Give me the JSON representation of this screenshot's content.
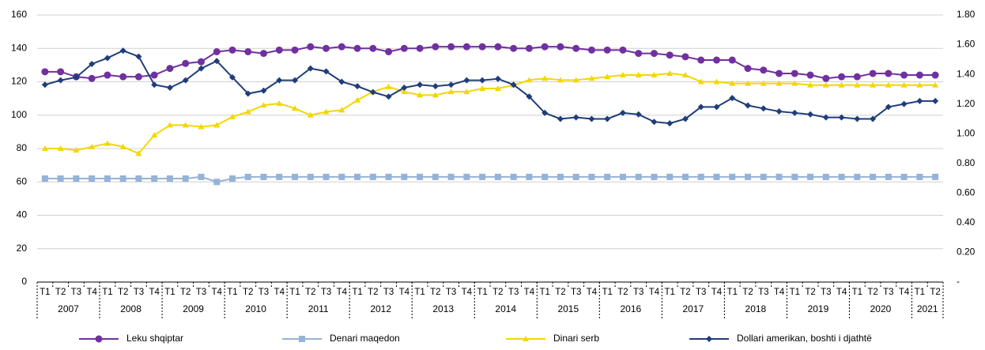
{
  "chart_data": {
    "type": "line",
    "categories": [
      "T1",
      "T2",
      "T3",
      "T4",
      "T1",
      "T2",
      "T3",
      "T4",
      "T1",
      "T2",
      "T3",
      "T4",
      "T1",
      "T2",
      "T3",
      "T4",
      "T1",
      "T2",
      "T3",
      "T4",
      "T1",
      "T2",
      "T3",
      "T4",
      "T1",
      "T2",
      "T3",
      "T4",
      "T1",
      "T2",
      "T3",
      "T4",
      "T1",
      "T2",
      "T3",
      "T4",
      "T1",
      "T2",
      "T3",
      "T4",
      "T1",
      "T2",
      "T3",
      "T4",
      "T1",
      "T2",
      "T3",
      "T4",
      "T1",
      "T2",
      "T3",
      "T4",
      "T1",
      "T2",
      "T3",
      "T4",
      "T1",
      "T2"
    ],
    "years": [
      "2007",
      "2008",
      "2009",
      "2010",
      "2011",
      "2012",
      "2013",
      "2014",
      "2015",
      "2016",
      "2017",
      "2018",
      "2019",
      "2020",
      "2021"
    ],
    "ylim": [
      0,
      160
    ],
    "yticks": [
      0,
      20,
      40,
      60,
      80,
      100,
      120,
      140,
      160
    ],
    "y2lim": [
      0,
      1.8
    ],
    "y2ticks": [
      {
        "value": 0,
        "label": "-"
      },
      {
        "value": 0.2,
        "label": "0.20"
      },
      {
        "value": 0.4,
        "label": "0.40"
      },
      {
        "value": 0.6,
        "label": "0.60"
      },
      {
        "value": 0.8,
        "label": "0.80"
      },
      {
        "value": 1.0,
        "label": "1.00"
      },
      {
        "value": 1.2,
        "label": "1.20"
      },
      {
        "value": 1.4,
        "label": "1.40"
      },
      {
        "value": 1.6,
        "label": "1.60"
      },
      {
        "value": 1.8,
        "label": "1.80"
      }
    ],
    "grid": true,
    "legend": "bottom",
    "series": [
      {
        "name": "Leku shqiptar",
        "color": "#7030a0",
        "marker": "circle",
        "values": [
          126,
          126,
          123,
          122,
          124,
          123,
          123,
          124,
          128,
          131,
          132,
          138,
          139,
          138,
          137,
          139,
          139,
          141,
          140,
          141,
          140,
          140,
          138,
          140,
          140,
          141,
          141,
          141,
          141,
          141,
          140,
          140,
          141,
          141,
          140,
          139,
          139,
          139,
          137,
          137,
          136,
          135,
          133,
          133,
          133,
          128,
          127,
          125,
          125,
          124,
          122,
          123,
          123,
          125,
          125,
          124,
          124,
          124
        ]
      },
      {
        "name": "Denari maqedon",
        "color": "#95b3d7",
        "marker": "square",
        "values": [
          62,
          62,
          62,
          62,
          62,
          62,
          62,
          62,
          62,
          62,
          63,
          60,
          62,
          63,
          63,
          63,
          63,
          63,
          63,
          63,
          63,
          63,
          63,
          63,
          63,
          63,
          63,
          63,
          63,
          63,
          63,
          63,
          63,
          63,
          63,
          63,
          63,
          63,
          63,
          63,
          63,
          63,
          63,
          63,
          63,
          63,
          63,
          63,
          63,
          63,
          63,
          63,
          63,
          63,
          63,
          63,
          63,
          63
        ]
      },
      {
        "name": "Dinari serb",
        "color": "#f2d700",
        "marker": "triangle",
        "values": [
          80,
          80,
          79,
          81,
          83,
          81,
          77,
          88,
          94,
          94,
          93,
          94,
          99,
          102,
          106,
          107,
          104,
          100,
          102,
          103,
          109,
          114,
          117,
          114,
          112,
          112,
          114,
          114,
          116,
          116,
          118,
          121,
          122,
          121,
          121,
          122,
          123,
          124,
          124,
          124,
          125,
          124,
          120,
          120,
          119,
          119,
          119,
          119,
          119,
          118,
          118,
          118,
          118,
          118,
          118,
          118,
          118,
          118
        ]
      },
      {
        "name": "Dollari amerikan, boshti i djathtë",
        "color": "#1f3d7a",
        "marker": "diamond",
        "axis": "y2",
        "values": [
          1.33,
          1.36,
          1.38,
          1.47,
          1.51,
          1.56,
          1.52,
          1.33,
          1.31,
          1.36,
          1.44,
          1.49,
          1.38,
          1.27,
          1.29,
          1.36,
          1.36,
          1.44,
          1.42,
          1.35,
          1.32,
          1.28,
          1.25,
          1.31,
          1.33,
          1.32,
          1.33,
          1.36,
          1.36,
          1.37,
          1.33,
          1.25,
          1.14,
          1.1,
          1.11,
          1.1,
          1.1,
          1.14,
          1.13,
          1.08,
          1.07,
          1.1,
          1.18,
          1.18,
          1.24,
          1.19,
          1.17,
          1.15,
          1.14,
          1.13,
          1.11,
          1.11,
          1.1,
          1.1,
          1.18,
          1.2,
          1.22,
          1.22
        ]
      }
    ]
  }
}
